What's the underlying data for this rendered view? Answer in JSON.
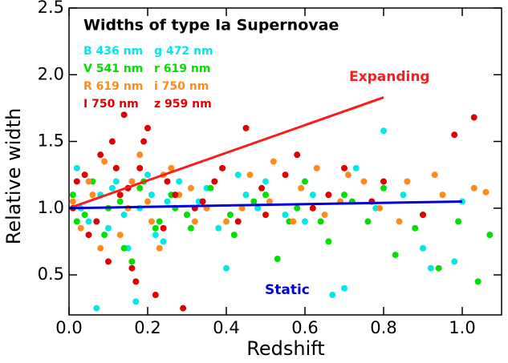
{
  "chart_data": {
    "type": "scatter",
    "title": "Widths of type Ia Supernovae",
    "xlabel": "Redshift",
    "ylabel": "Relative width",
    "xlim": [
      0,
      1.1
    ],
    "ylim": [
      0.2,
      2.5
    ],
    "xticks": [
      {
        "value": 0,
        "label": "0.0"
      },
      {
        "value": 0.2,
        "label": "0.2"
      },
      {
        "value": 0.4,
        "label": "0.4"
      },
      {
        "value": 0.6,
        "label": "0.6"
      },
      {
        "value": 0.8,
        "label": "0.8"
      },
      {
        "value": 1,
        "label": "1.0"
      }
    ],
    "yticks": [
      0.5,
      {
        "value": 1,
        "label": "1.0"
      },
      1.5,
      {
        "value": 2,
        "label": "2.0"
      },
      2.5
    ],
    "legend": "upper left",
    "series": [
      {
        "name": "B 436 nm",
        "color": "#00e8e8",
        "x": [
          0.02,
          0.05,
          0.08,
          0.1,
          0.12,
          0.15,
          0.18,
          0.2,
          0.22,
          0.25,
          0.3,
          0.35,
          0.4,
          0.45,
          0.5,
          0.6,
          0.7,
          0.8,
          0.9,
          0.98
        ],
        "y": [
          1.3,
          0.9,
          1.1,
          0.85,
          1.2,
          0.7,
          1.0,
          1.25,
          0.8,
          1.05,
          0.95,
          1.15,
          0.55,
          1.1,
          1.2,
          0.9,
          0.4,
          1.58,
          0.7,
          0.6
        ]
      },
      {
        "name": "g 472 nm",
        "color": "#00e8e8",
        "x": [
          0.03,
          0.07,
          0.11,
          0.14,
          0.17,
          0.21,
          0.24,
          0.28,
          0.33,
          0.38,
          0.43,
          0.48,
          0.55,
          0.62,
          0.67,
          0.73,
          0.78,
          0.85,
          0.92,
          1.0
        ],
        "y": [
          1.0,
          0.25,
          1.15,
          0.95,
          0.3,
          1.1,
          0.75,
          1.2,
          1.05,
          0.85,
          1.25,
          1.0,
          0.95,
          1.1,
          0.35,
          1.3,
          1.0,
          1.1,
          0.55,
          1.05
        ]
      },
      {
        "name": "V 541 nm",
        "color": "#00e000",
        "x": [
          0.01,
          0.04,
          0.09,
          0.13,
          0.16,
          0.19,
          0.23,
          0.27,
          0.31,
          0.36,
          0.41,
          0.47,
          0.53,
          0.58,
          0.64,
          0.7,
          0.76,
          0.83,
          0.9,
          1.04
        ],
        "y": [
          1.1,
          0.95,
          0.8,
          1.05,
          0.6,
          1.2,
          0.9,
          1.0,
          0.85,
          1.15,
          0.95,
          1.05,
          0.62,
          1.0,
          0.9,
          1.1,
          0.9,
          0.65,
          0.95,
          0.45
        ]
      },
      {
        "name": "r 619 nm",
        "color": "#00e000",
        "x": [
          0.02,
          0.06,
          0.1,
          0.14,
          0.18,
          0.22,
          0.26,
          0.3,
          0.35,
          0.42,
          0.5,
          0.56,
          0.6,
          0.66,
          0.72,
          0.8,
          0.88,
          0.94,
          0.99,
          1.07
        ],
        "y": [
          0.9,
          1.2,
          1.0,
          0.7,
          1.15,
          0.85,
          1.1,
          0.95,
          1.0,
          0.8,
          1.1,
          0.9,
          1.2,
          0.75,
          1.05,
          1.15,
          0.85,
          0.55,
          0.9,
          0.8
        ]
      },
      {
        "name": "R 619 nm",
        "color": "#ff8c1a",
        "x": [
          0.01,
          0.05,
          0.08,
          0.12,
          0.15,
          0.18,
          0.21,
          0.24,
          0.28,
          0.32,
          0.37,
          0.44,
          0.52,
          0.59,
          0.65,
          0.71,
          0.79,
          0.86,
          0.95,
          1.03
        ],
        "y": [
          1.05,
          1.2,
          0.7,
          1.3,
          1.0,
          1.4,
          0.9,
          1.25,
          1.1,
          0.9,
          1.2,
          1.0,
          1.35,
          1.15,
          0.95,
          1.25,
          1.0,
          1.2,
          1.1,
          1.15
        ]
      },
      {
        "name": "i 750 nm",
        "color": "#ff8c1a",
        "x": [
          0.03,
          0.06,
          0.09,
          0.13,
          0.16,
          0.2,
          0.23,
          0.26,
          0.31,
          0.35,
          0.4,
          0.46,
          0.51,
          0.57,
          0.63,
          0.69,
          0.75,
          0.84,
          0.93,
          1.06
        ],
        "y": [
          0.85,
          1.1,
          1.35,
          0.8,
          1.2,
          1.05,
          0.7,
          1.3,
          1.15,
          1.0,
          0.9,
          1.25,
          1.05,
          0.9,
          1.3,
          1.05,
          1.2,
          0.9,
          1.25,
          1.12
        ]
      },
      {
        "name": "I 750 nm",
        "color": "#e00000",
        "x": [
          0.02,
          0.05,
          0.08,
          0.1,
          0.12,
          0.14,
          0.15,
          0.17,
          0.19,
          0.22,
          0.25,
          0.29,
          0.34,
          0.39,
          0.45,
          0.5,
          0.58,
          0.66,
          0.8,
          0.98
        ],
        "y": [
          1.2,
          0.8,
          1.4,
          0.6,
          1.3,
          1.7,
          1.15,
          0.45,
          1.5,
          0.35,
          1.2,
          0.25,
          1.05,
          1.3,
          1.6,
          0.95,
          1.4,
          1.1,
          1.2,
          1.55
        ]
      },
      {
        "name": "z 959 nm",
        "color": "#e00000",
        "x": [
          0.01,
          0.04,
          0.07,
          0.11,
          0.13,
          0.16,
          0.18,
          0.2,
          0.24,
          0.27,
          0.32,
          0.37,
          0.43,
          0.49,
          0.55,
          0.62,
          0.7,
          0.77,
          0.9,
          1.03
        ],
        "y": [
          1.0,
          1.25,
          0.9,
          1.5,
          1.1,
          0.55,
          1.3,
          1.6,
          0.85,
          1.1,
          1.0,
          1.2,
          0.9,
          1.15,
          1.25,
          1.0,
          1.3,
          1.05,
          0.95,
          1.68
        ]
      }
    ],
    "lines": [
      {
        "name": "Expanding",
        "color": "#ff1a1a",
        "x": [
          0,
          0.8
        ],
        "y": [
          1.0,
          1.83
        ]
      },
      {
        "name": "Static",
        "color": "#0000dd",
        "x": [
          0,
          1.0
        ],
        "y": [
          1.0,
          1.05
        ]
      }
    ]
  }
}
